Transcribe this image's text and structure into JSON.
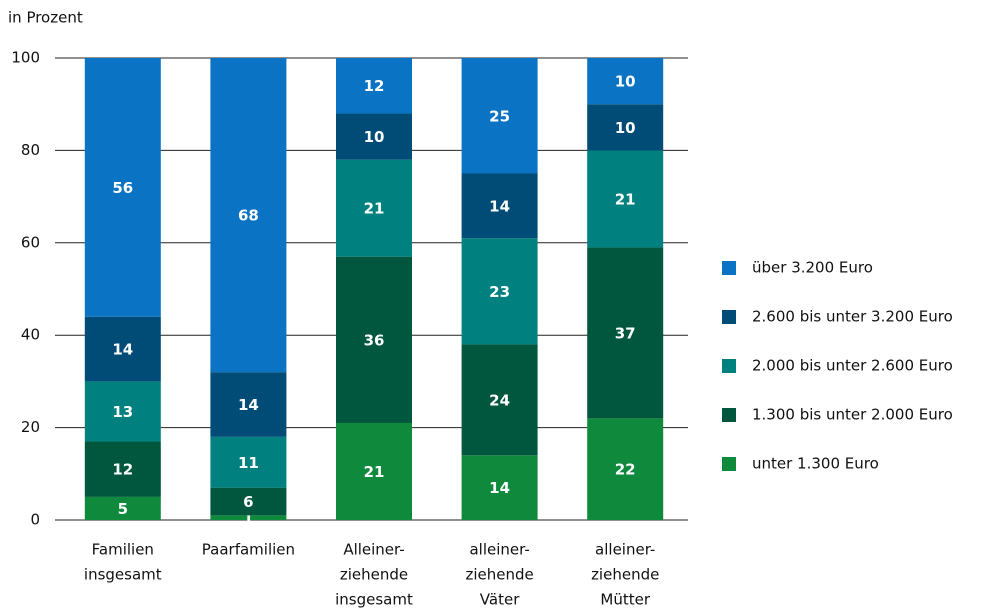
{
  "chart_data": {
    "type": "stacked_bar",
    "y_axis_label": "in Prozent",
    "categories": [
      [
        "Familien",
        "insgesamt"
      ],
      [
        "Paarfamilien"
      ],
      [
        "Alleiner-",
        "ziehende",
        "insgesamt"
      ],
      [
        "alleiner-",
        "ziehende",
        "Väter"
      ],
      [
        "alleiner-",
        "ziehende",
        "Mütter"
      ]
    ],
    "series": [
      {
        "name": "unter 1.300 Euro",
        "color": "#0f8a3c",
        "values": [
          5,
          1,
          21,
          14,
          22
        ]
      },
      {
        "name": "1.300 bis unter 2.000 Euro",
        "color": "#00573e",
        "values": [
          12,
          6,
          36,
          24,
          37
        ]
      },
      {
        "name": "2.000 bis unter 2.600 Euro",
        "color": "#00817f",
        "values": [
          13,
          11,
          21,
          23,
          21
        ]
      },
      {
        "name": "2.600 bis unter 3.200 Euro",
        "color": "#004c76",
        "values": [
          14,
          14,
          10,
          14,
          10
        ]
      },
      {
        "name": "über 3.200 Euro",
        "color": "#0a73c3",
        "values": [
          56,
          68,
          12,
          25,
          10
        ]
      }
    ],
    "ylim": [
      0,
      100
    ],
    "yticks": [
      0,
      20,
      40,
      60,
      80,
      100
    ],
    "grid": true,
    "legend": "right"
  }
}
